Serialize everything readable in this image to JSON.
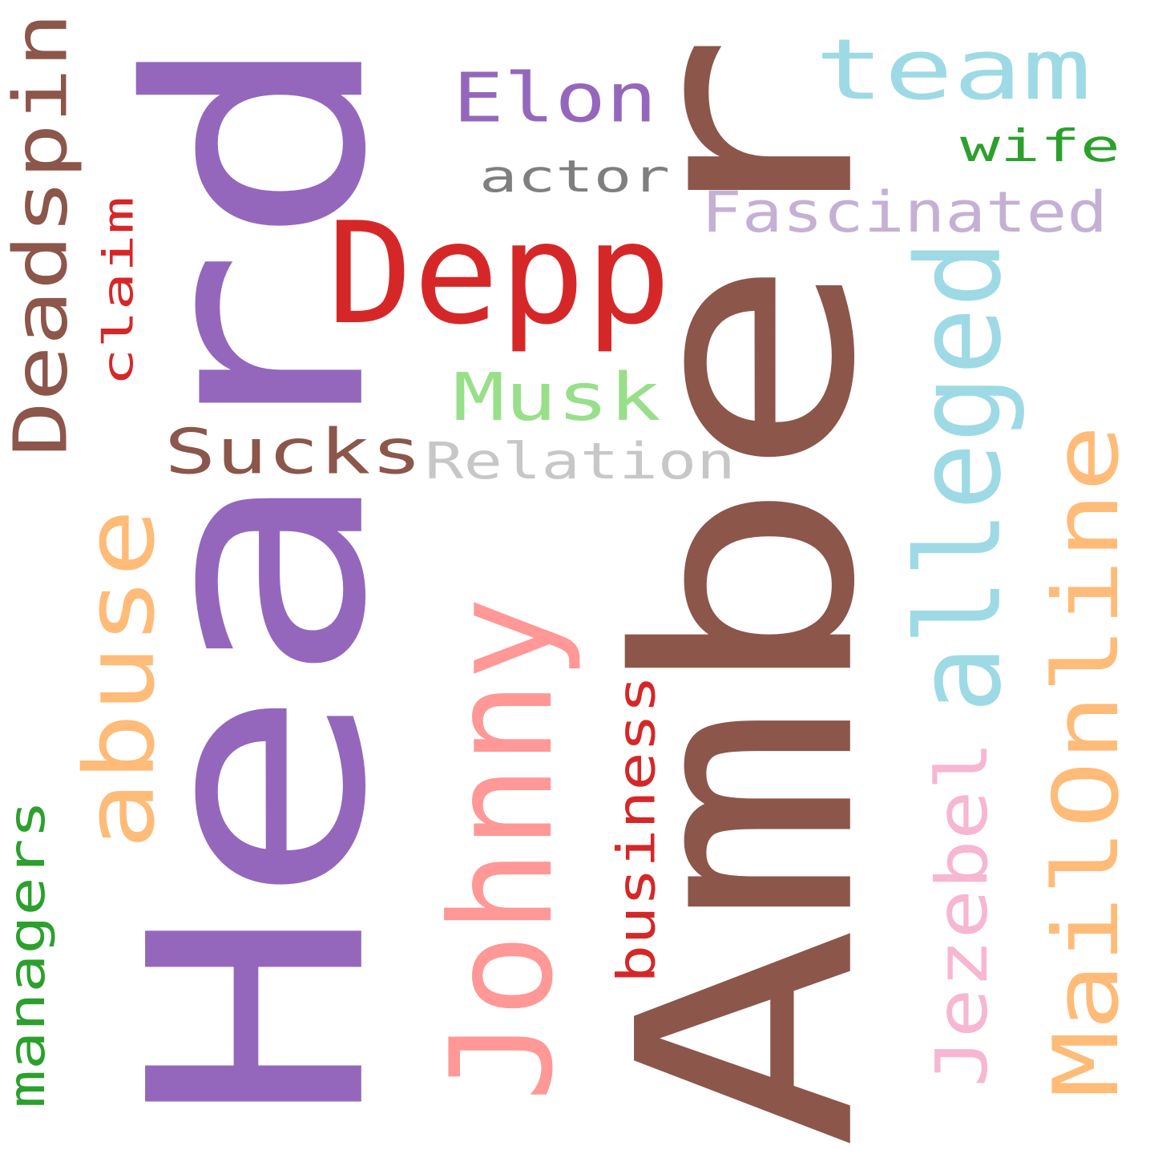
{
  "words": {
    "amber": {
      "text": "Amber",
      "color": "#8c564b"
    },
    "heard": {
      "text": "Heard",
      "color": "#9467bd"
    },
    "depp": {
      "text": "Depp",
      "color": "#d62728"
    },
    "johnny": {
      "text": "Johnny",
      "color": "#ff9896"
    },
    "alleged": {
      "text": "alleged",
      "color": "#9edae5"
    },
    "mailonline": {
      "text": "MailOnline",
      "color": "#ffbb78"
    },
    "team": {
      "text": "team",
      "color": "#9edae5"
    },
    "elon": {
      "text": "Elon",
      "color": "#9467bd"
    },
    "musk": {
      "text": "Musk",
      "color": "#98df8a"
    },
    "abuse": {
      "text": "abuse",
      "color": "#ffbb78"
    },
    "deadspin": {
      "text": "Deadspin",
      "color": "#8c564b"
    },
    "sucks": {
      "text": "Sucks",
      "color": "#8c564b"
    },
    "relation": {
      "text": "Relation",
      "color": "#c7c7c7"
    },
    "fascinated": {
      "text": "Fascinated",
      "color": "#c5b0d5"
    },
    "jezebel": {
      "text": "Jezebel",
      "color": "#f7b6d2"
    },
    "actor": {
      "text": "actor",
      "color": "#7f7f7f"
    },
    "wife": {
      "text": "wife",
      "color": "#2ca02c"
    },
    "claim": {
      "text": "claim",
      "color": "#d62728"
    },
    "business": {
      "text": "business",
      "color": "#d62728"
    },
    "managers": {
      "text": "managers",
      "color": "#2ca02c"
    }
  }
}
